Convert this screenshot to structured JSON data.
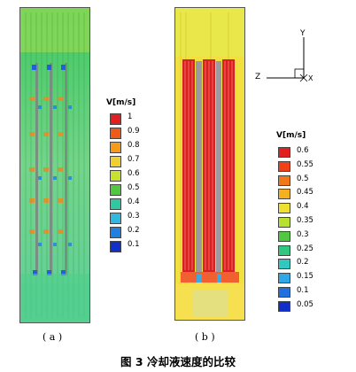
{
  "panel_a": {
    "label": "( a )",
    "legend": {
      "title": "V[m/s]",
      "ticks": [
        "1",
        "0.9",
        "0.8",
        "0.7",
        "0.6",
        "0.5",
        "0.4",
        "0.3",
        "0.2",
        "0.1"
      ],
      "colors": [
        "#e02020",
        "#f05a18",
        "#f59a1a",
        "#f0d030",
        "#c8e030",
        "#50c840",
        "#30c8a0",
        "#30b8e0",
        "#2080e0",
        "#1030c8"
      ]
    }
  },
  "panel_b": {
    "label": "( b )",
    "legend": {
      "title": "V[m/s]",
      "ticks": [
        "0.6",
        "0.55",
        "0.5",
        "0.45",
        "0.4",
        "0.35",
        "0.3",
        "0.25",
        "0.2",
        "0.15",
        "0.1",
        "0.05"
      ],
      "colors": [
        "#e02020",
        "#f04018",
        "#f07818",
        "#f5b020",
        "#f0e030",
        "#b8e030",
        "#50c840",
        "#30c880",
        "#30c8c0",
        "#30a8e8",
        "#2070e0",
        "#1030c8"
      ]
    },
    "axes": {
      "y": "Y",
      "z": "Z",
      "x": "X"
    }
  },
  "figure_caption": "图 3  冷却液速度的比较"
}
